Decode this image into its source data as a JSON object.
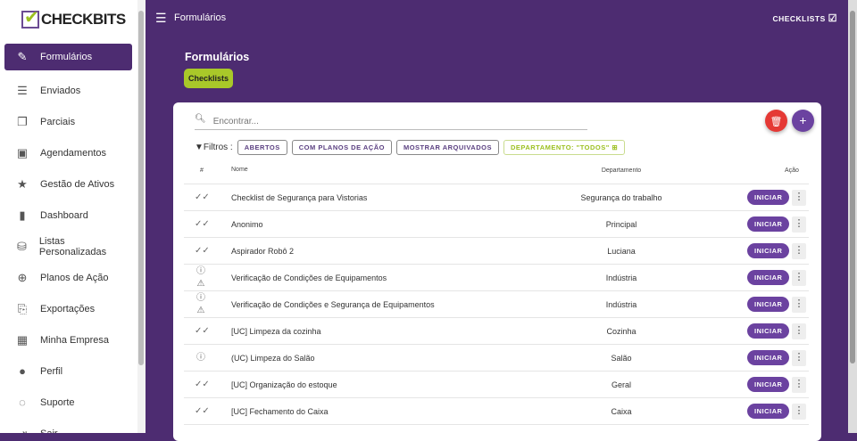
{
  "brand": "CHECKBITS",
  "sidebar": {
    "items": [
      {
        "label": "Formulários",
        "icon": "file-edit-icon",
        "active": true
      },
      {
        "label": "Enviados",
        "icon": "file-check-icon"
      },
      {
        "label": "Parciais",
        "icon": "files-icon"
      },
      {
        "label": "Agendamentos",
        "icon": "calendar-check-icon"
      },
      {
        "label": "Gestão de Ativos",
        "icon": "star-tools-icon"
      },
      {
        "label": "Dashboard",
        "icon": "bar-chart-icon"
      },
      {
        "label": "Listas Personalizadas",
        "icon": "database-icon"
      },
      {
        "label": "Planos de Ação",
        "icon": "crosshair-icon"
      },
      {
        "label": "Exportações",
        "icon": "export-file-icon"
      },
      {
        "label": "Minha Empresa",
        "icon": "building-icon"
      },
      {
        "label": "Perfil",
        "icon": "person-icon"
      },
      {
        "label": "Suporte",
        "icon": "chat-icon"
      },
      {
        "label": "Sair",
        "icon": "logout-icon"
      }
    ]
  },
  "topbar": {
    "title": "Formulários",
    "right_label": "CHECKLISTS"
  },
  "page": {
    "title": "Formulários",
    "chip": "Checklists"
  },
  "search": {
    "placeholder": "Encontrar..."
  },
  "filters": {
    "label": "Filtros :",
    "buttons": [
      "ABERTOS",
      "COM PLANOS DE AÇÃO",
      "MOSTRAR ARQUIVADOS"
    ],
    "department": "DEPARTAMENTO: \"TODOS\""
  },
  "table": {
    "headers": {
      "num": "#",
      "name": "Nome",
      "dept": "Departamento",
      "action": "Ação"
    },
    "start_label": "INICIAR",
    "rows": [
      {
        "status": "done",
        "name": "Checklist de Segurança para Vistorias",
        "dept": "Segurança do trabalho"
      },
      {
        "status": "done",
        "name": "Anonimo",
        "dept": "Principal"
      },
      {
        "status": "done",
        "name": "Aspirador Robô 2",
        "dept": "Luciana"
      },
      {
        "status": "info-warning",
        "name": "Verificação de Condições de Equipamentos",
        "dept": "Indústria"
      },
      {
        "status": "info-warning",
        "name": "Verificação de Condições e Segurança de Equipamentos",
        "dept": "Indústria"
      },
      {
        "status": "done",
        "name": "[UC] Limpeza da cozinha",
        "dept": "Cozinha"
      },
      {
        "status": "info",
        "name": "(UC) Limpeza do Salão",
        "dept": "Salão"
      },
      {
        "status": "done",
        "name": "[UC] Organização do estoque",
        "dept": "Geral"
      },
      {
        "status": "done",
        "name": "[UC] Fechamento do Caixa",
        "dept": "Caixa"
      }
    ]
  },
  "colors": {
    "primary": "#4d2c71",
    "accent": "#a9c829",
    "danger": "#e53935",
    "button": "#6b42a0"
  }
}
